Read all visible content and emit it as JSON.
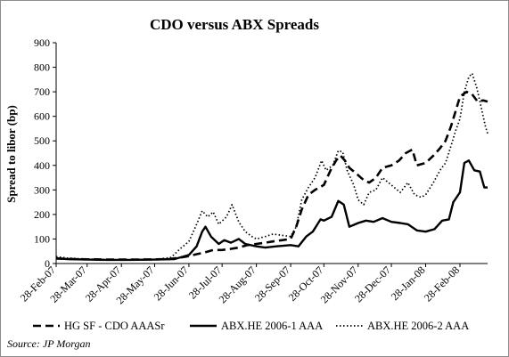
{
  "chart_data": {
    "type": "line",
    "title": "CDO versus ABX Spreads",
    "xlabel": "",
    "ylabel": "Spread to libor (bp)",
    "ylim": [
      0,
      900
    ],
    "yticks": [
      0,
      100,
      200,
      300,
      400,
      500,
      600,
      700,
      800,
      900
    ],
    "xlim": [
      "2007-02-28",
      "2008-03-24"
    ],
    "xticks": [
      {
        "date": "2007-02-28",
        "label": "28-Feb-07"
      },
      {
        "date": "2007-03-28",
        "label": "28-Mar-07"
      },
      {
        "date": "2007-04-28",
        "label": "28-Apr-07"
      },
      {
        "date": "2007-05-28",
        "label": "28-May-07"
      },
      {
        "date": "2007-06-28",
        "label": "28-Jun-07"
      },
      {
        "date": "2007-07-28",
        "label": "28-Jul-07"
      },
      {
        "date": "2007-08-28",
        "label": "28-Aug-07"
      },
      {
        "date": "2007-09-28",
        "label": "28-Sep-07"
      },
      {
        "date": "2007-10-28",
        "label": "28-Oct-07"
      },
      {
        "date": "2007-11-28",
        "label": "28-Nov-07"
      },
      {
        "date": "2007-12-28",
        "label": "28-Dec-07"
      },
      {
        "date": "2008-01-28",
        "label": "28-Jan-08"
      },
      {
        "date": "2008-02-28",
        "label": "28-Feb-08"
      }
    ],
    "grid": false,
    "legend_position": "bottom",
    "source": "Source: JP Morgan",
    "series": [
      {
        "name": "HG SF - CDO AAASr",
        "style": "dashed",
        "color": "#000000",
        "points": [
          [
            "2007-02-28",
            20
          ],
          [
            "2007-03-15",
            18
          ],
          [
            "2007-04-01",
            17
          ],
          [
            "2007-04-20",
            16
          ],
          [
            "2007-05-10",
            16
          ],
          [
            "2007-05-30",
            17
          ],
          [
            "2007-06-10",
            18
          ],
          [
            "2007-06-20",
            24
          ],
          [
            "2007-06-28",
            30
          ],
          [
            "2007-07-05",
            38
          ],
          [
            "2007-07-12",
            45
          ],
          [
            "2007-07-20",
            55
          ],
          [
            "2007-07-28",
            55
          ],
          [
            "2007-08-05",
            60
          ],
          [
            "2007-08-12",
            65
          ],
          [
            "2007-08-20",
            75
          ],
          [
            "2007-08-28",
            80
          ],
          [
            "2007-09-05",
            85
          ],
          [
            "2007-09-12",
            90
          ],
          [
            "2007-09-20",
            95
          ],
          [
            "2007-09-28",
            100
          ],
          [
            "2007-10-03",
            150
          ],
          [
            "2007-10-08",
            220
          ],
          [
            "2007-10-14",
            280
          ],
          [
            "2007-10-20",
            300
          ],
          [
            "2007-10-28",
            320
          ],
          [
            "2007-11-03",
            380
          ],
          [
            "2007-11-08",
            420
          ],
          [
            "2007-11-12",
            440
          ],
          [
            "2007-11-16",
            420
          ],
          [
            "2007-11-20",
            390
          ],
          [
            "2007-11-28",
            360
          ],
          [
            "2007-12-03",
            340
          ],
          [
            "2007-12-08",
            330
          ],
          [
            "2007-12-14",
            350
          ],
          [
            "2007-12-20",
            390
          ],
          [
            "2007-12-28",
            400
          ],
          [
            "2008-01-04",
            420
          ],
          [
            "2008-01-10",
            450
          ],
          [
            "2008-01-16",
            465
          ],
          [
            "2008-01-20",
            400
          ],
          [
            "2008-01-28",
            410
          ],
          [
            "2008-02-04",
            440
          ],
          [
            "2008-02-10",
            470
          ],
          [
            "2008-02-15",
            500
          ],
          [
            "2008-02-20",
            560
          ],
          [
            "2008-02-24",
            620
          ],
          [
            "2008-02-28",
            680
          ],
          [
            "2008-03-05",
            700
          ],
          [
            "2008-03-10",
            690
          ],
          [
            "2008-03-15",
            660
          ],
          [
            "2008-03-20",
            665
          ],
          [
            "2008-03-24",
            660
          ]
        ]
      },
      {
        "name": "ABX.HE 2006-1 AAA",
        "style": "solid",
        "color": "#000000",
        "points": [
          [
            "2007-02-28",
            22
          ],
          [
            "2007-03-10",
            18
          ],
          [
            "2007-03-28",
            16
          ],
          [
            "2007-04-15",
            15
          ],
          [
            "2007-05-05",
            15
          ],
          [
            "2007-05-28",
            16
          ],
          [
            "2007-06-15",
            18
          ],
          [
            "2007-06-28",
            35
          ],
          [
            "2007-07-05",
            70
          ],
          [
            "2007-07-10",
            130
          ],
          [
            "2007-07-13",
            150
          ],
          [
            "2007-07-18",
            110
          ],
          [
            "2007-07-25",
            80
          ],
          [
            "2007-07-30",
            95
          ],
          [
            "2007-08-05",
            85
          ],
          [
            "2007-08-12",
            100
          ],
          [
            "2007-08-18",
            80
          ],
          [
            "2007-08-28",
            70
          ],
          [
            "2007-09-05",
            65
          ],
          [
            "2007-09-15",
            70
          ],
          [
            "2007-09-28",
            75
          ],
          [
            "2007-10-05",
            70
          ],
          [
            "2007-10-12",
            110
          ],
          [
            "2007-10-18",
            130
          ],
          [
            "2007-10-25",
            180
          ],
          [
            "2007-10-28",
            175
          ],
          [
            "2007-11-04",
            190
          ],
          [
            "2007-11-10",
            255
          ],
          [
            "2007-11-15",
            240
          ],
          [
            "2007-11-20",
            150
          ],
          [
            "2007-11-28",
            165
          ],
          [
            "2007-12-05",
            175
          ],
          [
            "2007-12-12",
            170
          ],
          [
            "2007-12-20",
            185
          ],
          [
            "2007-12-28",
            170
          ],
          [
            "2008-01-05",
            165
          ],
          [
            "2008-01-12",
            160
          ],
          [
            "2008-01-20",
            135
          ],
          [
            "2008-01-28",
            130
          ],
          [
            "2008-02-05",
            140
          ],
          [
            "2008-02-12",
            175
          ],
          [
            "2008-02-18",
            180
          ],
          [
            "2008-02-22",
            250
          ],
          [
            "2008-02-28",
            290
          ],
          [
            "2008-03-03",
            410
          ],
          [
            "2008-03-07",
            420
          ],
          [
            "2008-03-12",
            380
          ],
          [
            "2008-03-17",
            375
          ],
          [
            "2008-03-21",
            310
          ],
          [
            "2008-03-24",
            310
          ]
        ]
      },
      {
        "name": "ABX.HE 2006-2 AAA",
        "style": "dotted",
        "color": "#000000",
        "points": [
          [
            "2007-02-28",
            28
          ],
          [
            "2007-03-10",
            22
          ],
          [
            "2007-03-28",
            18
          ],
          [
            "2007-04-15",
            16
          ],
          [
            "2007-05-05",
            15
          ],
          [
            "2007-05-28",
            16
          ],
          [
            "2007-06-12",
            25
          ],
          [
            "2007-06-20",
            60
          ],
          [
            "2007-06-28",
            90
          ],
          [
            "2007-07-05",
            160
          ],
          [
            "2007-07-10",
            215
          ],
          [
            "2007-07-15",
            190
          ],
          [
            "2007-07-20",
            210
          ],
          [
            "2007-07-25",
            160
          ],
          [
            "2007-08-01",
            190
          ],
          [
            "2007-08-06",
            240
          ],
          [
            "2007-08-12",
            170
          ],
          [
            "2007-08-18",
            130
          ],
          [
            "2007-08-24",
            110
          ],
          [
            "2007-08-28",
            100
          ],
          [
            "2007-09-05",
            110
          ],
          [
            "2007-09-12",
            120
          ],
          [
            "2007-09-20",
            115
          ],
          [
            "2007-09-28",
            110
          ],
          [
            "2007-10-03",
            150
          ],
          [
            "2007-10-08",
            260
          ],
          [
            "2007-10-14",
            310
          ],
          [
            "2007-10-20",
            350
          ],
          [
            "2007-10-26",
            420
          ],
          [
            "2007-10-30",
            380
          ],
          [
            "2007-11-05",
            400
          ],
          [
            "2007-11-10",
            460
          ],
          [
            "2007-11-14",
            455
          ],
          [
            "2007-11-18",
            380
          ],
          [
            "2007-11-24",
            320
          ],
          [
            "2007-11-28",
            260
          ],
          [
            "2007-12-03",
            240
          ],
          [
            "2007-12-08",
            290
          ],
          [
            "2007-12-14",
            300
          ],
          [
            "2007-12-20",
            350
          ],
          [
            "2007-12-28",
            320
          ],
          [
            "2008-01-05",
            290
          ],
          [
            "2008-01-12",
            330
          ],
          [
            "2008-01-18",
            280
          ],
          [
            "2008-01-24",
            270
          ],
          [
            "2008-01-28",
            280
          ],
          [
            "2008-02-04",
            330
          ],
          [
            "2008-02-10",
            380
          ],
          [
            "2008-02-15",
            410
          ],
          [
            "2008-02-20",
            480
          ],
          [
            "2008-02-24",
            540
          ],
          [
            "2008-02-28",
            590
          ],
          [
            "2008-03-03",
            700
          ],
          [
            "2008-03-07",
            760
          ],
          [
            "2008-03-10",
            775
          ],
          [
            "2008-03-14",
            720
          ],
          [
            "2008-03-18",
            640
          ],
          [
            "2008-03-22",
            560
          ],
          [
            "2008-03-24",
            530
          ]
        ]
      }
    ]
  }
}
